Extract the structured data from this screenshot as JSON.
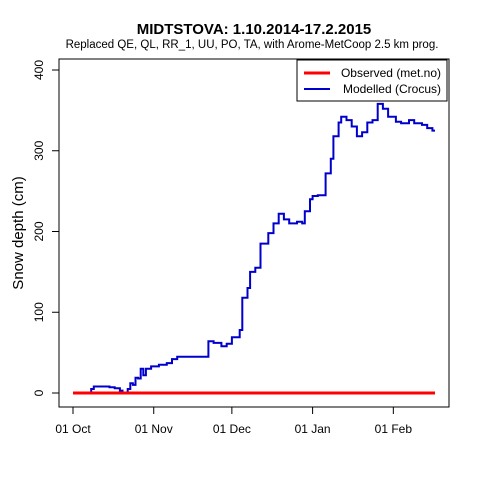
{
  "chart_data": {
    "type": "line",
    "title": "MIDTSTOVA: 1.10.2014-17.2.2015",
    "subtitle": "Replaced QE, QL, RR_1, UU, PO, TA,  with Arome-MetCoop 2.5 km prog.",
    "xlabel": "",
    "ylabel": "Snow depth (cm)",
    "ylim": [
      0,
      400
    ],
    "yticks": [
      0,
      100,
      200,
      300,
      400
    ],
    "xlim": [
      "2014-10-01",
      "2015-02-17"
    ],
    "xticks": [
      {
        "date": "2014-10-01",
        "label": "01 Oct"
      },
      {
        "date": "2014-11-01",
        "label": "01 Nov"
      },
      {
        "date": "2014-12-01",
        "label": "01 Dec"
      },
      {
        "date": "2015-01-01",
        "label": "01 Jan"
      },
      {
        "date": "2015-02-01",
        "label": "01 Feb"
      }
    ],
    "grid": false,
    "legend_position": "top-right",
    "series": [
      {
        "name": "Observed (met.no)",
        "color": "#ff0000",
        "points": [
          [
            "2014-10-01",
            0
          ],
          [
            "2015-02-17",
            0
          ]
        ]
      },
      {
        "name": "Modelled (Crocus)",
        "color": "#0000cd",
        "points": [
          [
            "2014-10-01",
            0
          ],
          [
            "2014-10-07",
            0
          ],
          [
            "2014-10-08",
            5
          ],
          [
            "2014-10-09",
            8
          ],
          [
            "2014-10-12",
            8
          ],
          [
            "2014-10-15",
            7
          ],
          [
            "2014-10-17",
            6
          ],
          [
            "2014-10-19",
            3
          ],
          [
            "2014-10-20",
            0
          ],
          [
            "2014-10-21",
            0
          ],
          [
            "2014-10-22",
            5
          ],
          [
            "2014-10-23",
            12
          ],
          [
            "2014-10-24",
            10
          ],
          [
            "2014-10-25",
            19
          ],
          [
            "2014-10-26",
            18
          ],
          [
            "2014-10-27",
            30
          ],
          [
            "2014-10-28",
            22
          ],
          [
            "2014-10-29",
            30
          ],
          [
            "2014-10-31",
            33
          ],
          [
            "2014-11-03",
            35
          ],
          [
            "2014-11-06",
            37
          ],
          [
            "2014-11-08",
            42
          ],
          [
            "2014-11-10",
            45
          ],
          [
            "2014-11-12",
            45
          ],
          [
            "2014-11-20",
            45
          ],
          [
            "2014-11-22",
            64
          ],
          [
            "2014-11-24",
            62
          ],
          [
            "2014-11-27",
            58
          ],
          [
            "2014-11-29",
            61
          ],
          [
            "2014-12-01",
            69
          ],
          [
            "2014-12-04",
            78
          ],
          [
            "2014-12-05",
            118
          ],
          [
            "2014-12-07",
            130
          ],
          [
            "2014-12-08",
            150
          ],
          [
            "2014-12-10",
            155
          ],
          [
            "2014-12-12",
            185
          ],
          [
            "2014-12-15",
            198
          ],
          [
            "2014-12-17",
            210
          ],
          [
            "2014-12-19",
            222
          ],
          [
            "2014-12-21",
            215
          ],
          [
            "2014-12-23",
            210
          ],
          [
            "2014-12-26",
            212
          ],
          [
            "2014-12-28",
            210
          ],
          [
            "2014-12-29",
            225
          ],
          [
            "2014-12-31",
            240
          ],
          [
            "2015-01-01",
            244
          ],
          [
            "2015-01-03",
            245
          ],
          [
            "2015-01-06",
            272
          ],
          [
            "2015-01-08",
            290
          ],
          [
            "2015-01-09",
            318
          ],
          [
            "2015-01-11",
            335
          ],
          [
            "2015-01-12",
            342
          ],
          [
            "2015-01-14",
            338
          ],
          [
            "2015-01-16",
            330
          ],
          [
            "2015-01-18",
            318
          ],
          [
            "2015-01-20",
            323
          ],
          [
            "2015-01-22",
            335
          ],
          [
            "2015-01-24",
            338
          ],
          [
            "2015-01-26",
            358
          ],
          [
            "2015-01-28",
            352
          ],
          [
            "2015-01-30",
            342
          ],
          [
            "2015-02-02",
            336
          ],
          [
            "2015-02-04",
            334
          ],
          [
            "2015-02-07",
            338
          ],
          [
            "2015-02-09",
            334
          ],
          [
            "2015-02-12",
            332
          ],
          [
            "2015-02-14",
            328
          ],
          [
            "2015-02-16",
            325
          ],
          [
            "2015-02-17",
            325
          ]
        ]
      }
    ]
  }
}
